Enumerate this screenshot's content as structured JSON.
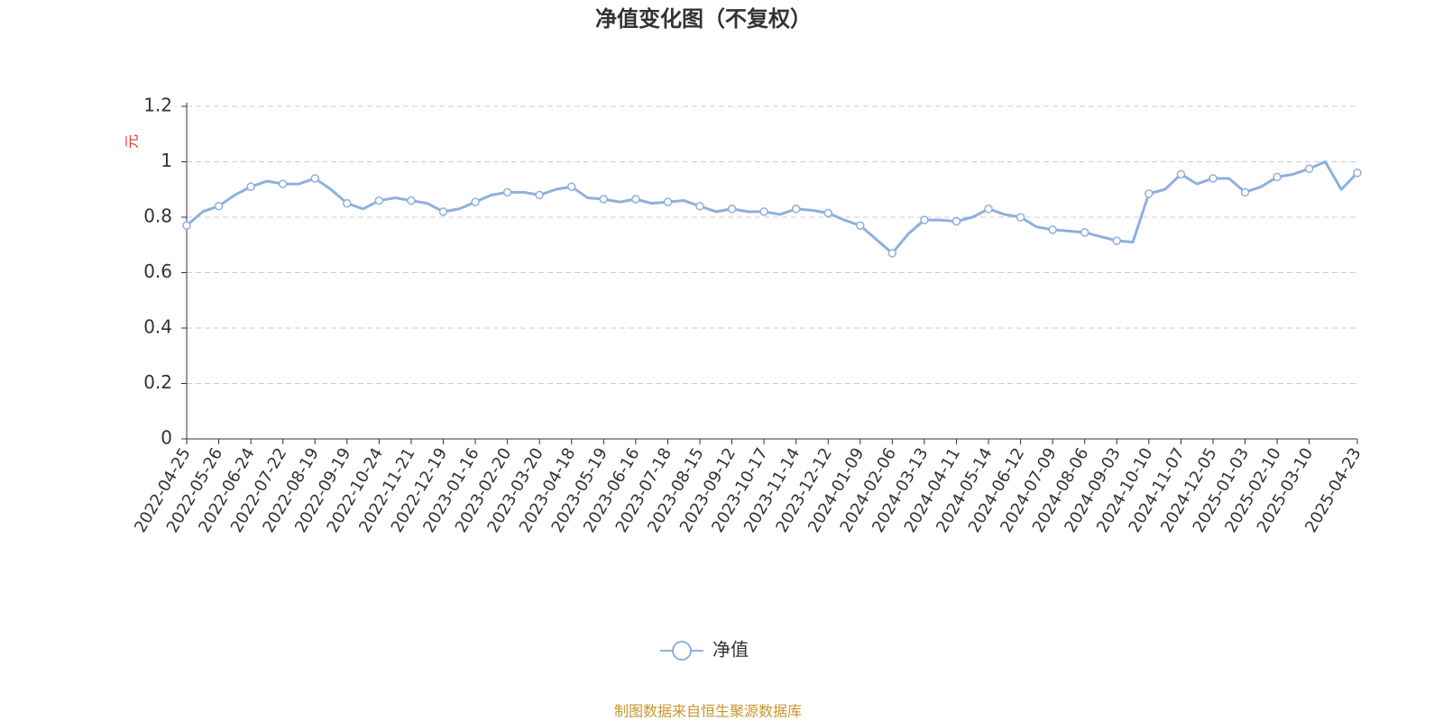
{
  "chart_data": {
    "type": "line",
    "title": "净值变化图（不复权）",
    "y_label": "元",
    "source": "制图数据来自恒生聚源数据库",
    "categories": [
      "2022-04-25",
      null,
      "2022-05-26",
      null,
      "2022-06-24",
      null,
      "2022-07-22",
      null,
      "2022-08-19",
      null,
      "2022-09-19",
      null,
      "2022-10-24",
      null,
      "2022-11-21",
      null,
      "2022-12-19",
      null,
      "2023-01-16",
      null,
      "2023-02-20",
      null,
      "2023-03-20",
      null,
      "2023-04-18",
      null,
      "2023-05-19",
      null,
      "2023-06-16",
      null,
      "2023-07-18",
      null,
      "2023-08-15",
      null,
      "2023-09-12",
      null,
      "2023-10-17",
      null,
      "2023-11-14",
      null,
      "2023-12-12",
      null,
      "2024-01-09",
      null,
      "2024-02-06",
      null,
      "2024-03-13",
      null,
      "2024-04-11",
      null,
      "2024-05-14",
      null,
      "2024-06-12",
      null,
      "2024-07-09",
      null,
      "2024-08-06",
      null,
      "2024-09-03",
      null,
      "2024-10-10",
      null,
      "2024-11-07",
      null,
      "2024-12-05",
      null,
      "2025-01-03",
      null,
      "2025-02-10",
      null,
      "2025-03-10",
      null,
      null,
      "2025-04-23"
    ],
    "series": [
      {
        "name": "净值",
        "color": "#8eb0dc",
        "values": [
          0.77,
          0.82,
          0.84,
          0.88,
          0.91,
          0.93,
          0.92,
          0.92,
          0.94,
          0.9,
          0.85,
          0.83,
          0.86,
          0.87,
          0.86,
          0.85,
          0.82,
          0.83,
          0.855,
          0.88,
          0.89,
          0.89,
          0.88,
          0.9,
          0.91,
          0.87,
          0.865,
          0.855,
          0.865,
          0.85,
          0.855,
          0.86,
          0.84,
          0.82,
          0.83,
          0.82,
          0.82,
          0.81,
          0.83,
          0.825,
          0.815,
          0.79,
          0.77,
          0.72,
          0.67,
          0.74,
          0.79,
          0.79,
          0.785,
          0.8,
          0.83,
          0.81,
          0.8,
          0.765,
          0.755,
          0.75,
          0.745,
          0.73,
          0.715,
          0.71,
          0.885,
          0.9,
          0.955,
          0.92,
          0.94,
          0.94,
          0.89,
          0.91,
          0.945,
          0.955,
          0.975,
          1.0,
          0.9,
          0.96
        ]
      }
    ],
    "ylim": [
      0,
      1.2
    ],
    "yticks": [
      0,
      0.2,
      0.4,
      0.6,
      0.8,
      1,
      1.2
    ],
    "grid": true,
    "legend": "bottom"
  }
}
